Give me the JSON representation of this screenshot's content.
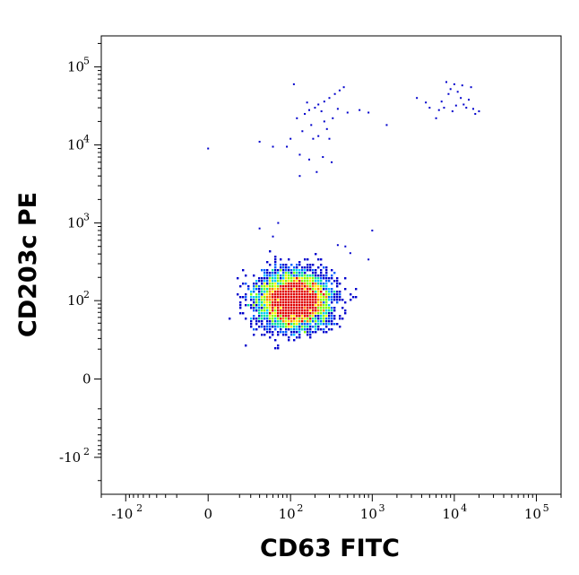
{
  "chart_data": {
    "type": "scatter",
    "style": "flow-cytometry density dot plot (biexponential axes)",
    "xlabel": "CD63 FITC",
    "ylabel": "CD203c PE",
    "x_scale": "biexponential",
    "y_scale": "biexponential",
    "xlim": [
      -200,
      200000
    ],
    "ylim": [
      -300,
      250000
    ],
    "grid": false,
    "legend": "none",
    "x_ticks": [
      {
        "base": "-10",
        "exp": "2",
        "value": -100
      },
      {
        "base": "0",
        "exp": "",
        "value": 0
      },
      {
        "base": "10",
        "exp": "2",
        "value": 100
      },
      {
        "base": "10",
        "exp": "3",
        "value": 1000
      },
      {
        "base": "10",
        "exp": "4",
        "value": 10000
      },
      {
        "base": "10",
        "exp": "5",
        "value": 100000
      }
    ],
    "y_ticks": [
      {
        "base": "-10",
        "exp": "2",
        "value": -100
      },
      {
        "base": "0",
        "exp": "",
        "value": 0
      },
      {
        "base": "10",
        "exp": "2",
        "value": 100
      },
      {
        "base": "10",
        "exp": "3",
        "value": 1000
      },
      {
        "base": "10",
        "exp": "4",
        "value": 10000
      },
      {
        "base": "10",
        "exp": "5",
        "value": 100000
      }
    ],
    "density_colors": [
      "#0000cc",
      "#0060ff",
      "#00c8ff",
      "#00e0a0",
      "#80ff00",
      "#ffee00",
      "#ff8000",
      "#e00000"
    ],
    "populations": [
      {
        "description_id": "main",
        "center": [
          110,
          100
        ],
        "spread_x": 65,
        "spread_y": 50,
        "events": 5200
      },
      {
        "description_id": "upper",
        "points": [
          [
            120,
            22000
          ],
          [
            150,
            25000
          ],
          [
            170,
            28000
          ],
          [
            200,
            30000
          ],
          [
            220,
            33000
          ],
          [
            260,
            36000
          ],
          [
            300,
            40000
          ],
          [
            350,
            45000
          ],
          [
            400,
            50000
          ],
          [
            450,
            55000
          ],
          [
            180,
            18000
          ],
          [
            140,
            15000
          ],
          [
            100,
            12000
          ],
          [
            90,
            9500
          ],
          [
            130,
            7500
          ],
          [
            170,
            6500
          ],
          [
            250,
            7000
          ],
          [
            320,
            6000
          ],
          [
            60,
            9500
          ],
          [
            40,
            11000
          ],
          [
            210,
            4500
          ],
          [
            130,
            4000
          ],
          [
            0,
            9000
          ],
          [
            110,
            60000
          ],
          [
            260,
            20000
          ],
          [
            220,
            13000
          ],
          [
            300,
            12000
          ],
          [
            500,
            26000
          ],
          [
            700,
            28000
          ],
          [
            900,
            26000
          ],
          [
            1500,
            18000
          ],
          [
            5000,
            30000
          ],
          [
            6500,
            28000
          ],
          [
            7000,
            36000
          ],
          [
            8500,
            45000
          ],
          [
            9000,
            52000
          ],
          [
            10000,
            60000
          ],
          [
            11000,
            48000
          ],
          [
            12000,
            40000
          ],
          [
            13000,
            33000
          ],
          [
            14000,
            30000
          ],
          [
            15000,
            38000
          ],
          [
            16000,
            55000
          ],
          [
            17000,
            29000
          ],
          [
            18000,
            25000
          ],
          [
            6000,
            22000
          ],
          [
            4500,
            35000
          ],
          [
            3500,
            40000
          ],
          [
            8000,
            64000
          ],
          [
            10500,
            32000
          ],
          [
            9500,
            27000
          ],
          [
            7500,
            30000
          ],
          [
            12500,
            58000
          ],
          [
            20000,
            27000
          ],
          [
            240,
            27000
          ],
          [
            280,
            16000
          ],
          [
            330,
            22000
          ],
          [
            380,
            29000
          ],
          [
            190,
            12000
          ],
          [
            160,
            35000
          ]
        ]
      },
      {
        "description_id": "sparse-mid",
        "points": [
          [
            70,
            1000
          ],
          [
            40,
            850
          ],
          [
            1000,
            800
          ],
          [
            60,
            670
          ],
          [
            380,
            520
          ],
          [
            470,
            500
          ],
          [
            540,
            410
          ],
          [
            900,
            340
          ]
        ]
      }
    ]
  }
}
